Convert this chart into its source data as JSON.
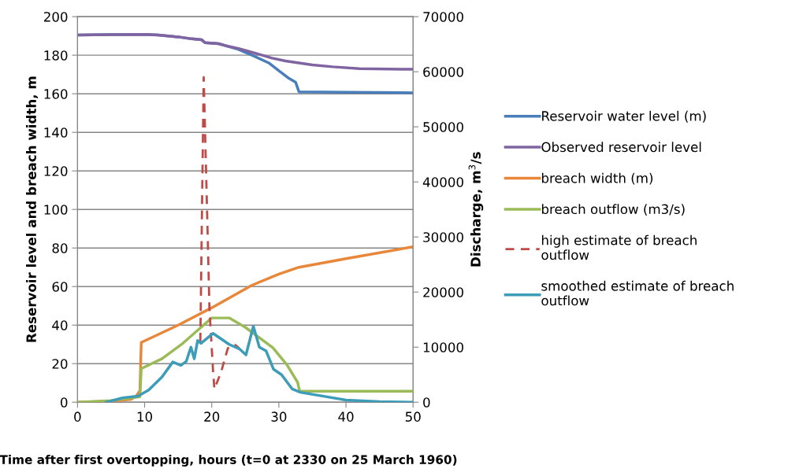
{
  "chart_data": {
    "type": "line",
    "xlabel": "Time after first overtopping, hours (t=0 at 2330 on 25 March 1960)",
    "ylabel": "Reservoir level and breach width, m",
    "y2label": "Discharge, m$^{3}$/s",
    "xlim": [
      0,
      50
    ],
    "xticks": [
      0,
      10,
      20,
      30,
      40,
      50
    ],
    "ylim": [
      0,
      200
    ],
    "yticks": [
      0,
      20,
      40,
      60,
      80,
      100,
      120,
      140,
      160,
      180,
      200
    ],
    "y2lim": [
      0,
      70000
    ],
    "y2ticks": [
      0,
      10000,
      20000,
      30000,
      40000,
      50000,
      60000,
      70000
    ],
    "grid": "y",
    "legend": "right",
    "marker": "none",
    "series": [
      {
        "name": "Reservoir water level (m)",
        "color": "#4a7ebb",
        "line_style": "solid",
        "x": [
          0,
          5,
          10,
          12,
          15,
          17,
          18.5,
          19,
          21,
          22,
          24,
          26,
          28.5,
          30,
          31.5,
          32.5,
          32.8,
          33,
          40,
          50
        ],
        "values": [
          190.5,
          190.7,
          190.8,
          190.5,
          189.5,
          188.5,
          188,
          186.5,
          186,
          185,
          183,
          180,
          176,
          172,
          168,
          166,
          163,
          161,
          160.8,
          160.5
        ]
      },
      {
        "name": "Observed reservoir level",
        "color": "#8064a2",
        "line_style": "solid",
        "x": [
          0,
          5,
          10,
          12,
          15,
          17,
          18.5,
          19,
          21,
          22,
          24,
          26,
          27,
          29,
          31,
          35,
          38,
          42,
          50
        ],
        "values": [
          190.5,
          190.7,
          190.8,
          190.5,
          189.5,
          188.5,
          188,
          186.5,
          186,
          185,
          183.5,
          181.5,
          180.5,
          178.5,
          177,
          175,
          174,
          173,
          172.7
        ]
      },
      {
        "name": "breach width (m)",
        "color": "#e8873a",
        "line_style": "solid",
        "x": [
          0,
          5,
          8,
          8.7,
          9.3,
          9.5,
          15,
          20,
          26,
          30,
          33,
          40,
          50
        ],
        "values": [
          0,
          0.5,
          1.5,
          3,
          6,
          31,
          40,
          49,
          60.7,
          66.5,
          70,
          74.5,
          80.6
        ]
      },
      {
        "name": "breach outflow (m3/s)",
        "color": "#9bbb59",
        "line_style": "solid",
        "axis": "y2",
        "x": [
          0,
          5,
          9.3,
          9.5,
          12.6,
          15.7,
          20,
          22.6,
          25,
          29.1,
          31.2,
          32.8,
          33.1,
          40,
          50
        ],
        "values": [
          0,
          300,
          1000,
          6100,
          7900,
          10700,
          15300,
          15300,
          13600,
          9900,
          6800,
          3600,
          2000,
          2000,
          2000
        ]
      },
      {
        "name": "high estimate of breach outflow",
        "color": "#be4b48",
        "line_style": "dashed",
        "axis": "y2",
        "x": [
          18.3,
          18.8,
          19.3,
          19.66,
          20.2,
          20.4,
          21.4,
          22.4,
          23.4,
          24.1
        ],
        "values": [
          11000,
          59000,
          35000,
          17000,
          5600,
          2400,
          5500,
          9800,
          10500,
          9800
        ]
      },
      {
        "name": "smoothed estimate of breach outflow",
        "color": "#3d9cb8",
        "line_style": "solid",
        "axis": "y2",
        "x": [
          4.3,
          6.7,
          9.0,
          10.6,
          12.6,
          14.2,
          15.4,
          16.2,
          16.9,
          17.4,
          17.9,
          18.4,
          20.2,
          22.6,
          24.1,
          25.1,
          26.2,
          27.1,
          28.1,
          29.2,
          30.4,
          32.0,
          33.2,
          40,
          45,
          50
        ],
        "values": [
          0,
          800,
          1100,
          2200,
          4600,
          7300,
          6700,
          7400,
          10000,
          7900,
          11200,
          10700,
          12500,
          10500,
          9700,
          8600,
          13800,
          10000,
          9300,
          6000,
          5000,
          2400,
          1800,
          400,
          100,
          0
        ]
      }
    ]
  }
}
